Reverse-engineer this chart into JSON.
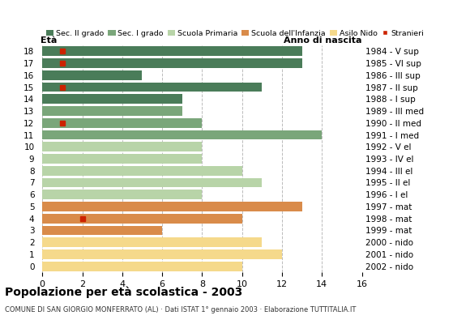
{
  "ages": [
    18,
    17,
    16,
    15,
    14,
    13,
    12,
    11,
    10,
    9,
    8,
    7,
    6,
    5,
    4,
    3,
    2,
    1,
    0
  ],
  "years": [
    "1984 - V sup",
    "1985 - VI sup",
    "1986 - III sup",
    "1987 - II sup",
    "1988 - I sup",
    "1989 - III med",
    "1990 - II med",
    "1991 - I med",
    "1992 - V el",
    "1993 - IV el",
    "1994 - III el",
    "1995 - II el",
    "1996 - I el",
    "1997 - mat",
    "1998 - mat",
    "1999 - mat",
    "2000 - nido",
    "2001 - nido",
    "2002 - nido"
  ],
  "values": [
    13,
    13,
    5,
    11,
    7,
    7,
    8,
    14,
    8,
    8,
    10,
    11,
    8,
    13,
    10,
    6,
    11,
    12,
    10
  ],
  "stranieri": [
    1,
    1,
    0,
    1,
    0,
    0,
    1,
    0,
    0,
    0,
    0,
    0,
    0,
    0,
    2,
    0,
    0,
    0,
    0
  ],
  "colors": {
    "sec2": "#4a7c59",
    "sec1": "#7aa67a",
    "primaria": "#b8d4a8",
    "infanzia": "#d98b4a",
    "nido": "#f5d98b",
    "stranieri": "#cc2200"
  },
  "bar_colors": [
    "#4a7c59",
    "#4a7c59",
    "#4a7c59",
    "#4a7c59",
    "#4a7c59",
    "#7aa67a",
    "#7aa67a",
    "#7aa67a",
    "#b8d4a8",
    "#b8d4a8",
    "#b8d4a8",
    "#b8d4a8",
    "#b8d4a8",
    "#d98b4a",
    "#d98b4a",
    "#d98b4a",
    "#f5d98b",
    "#f5d98b",
    "#f5d98b"
  ],
  "legend_labels": [
    "Sec. II grado",
    "Sec. I grado",
    "Scuola Primaria",
    "Scuola dell'Infanzia",
    "Asilo Nido",
    "Stranieri"
  ],
  "legend_colors": [
    "#4a7c59",
    "#7aa67a",
    "#b8d4a8",
    "#d98b4a",
    "#f5d98b",
    "#cc2200"
  ],
  "title": "Popolazione per età scolastica - 2003",
  "subtitle": "COMUNE DI SAN GIORGIO MONFERRATO (AL) · Dati ISTAT 1° gennaio 2003 · Elaborazione TUTTITALIA.IT",
  "eta_label": "Età",
  "anno_label": "Anno di nascita",
  "xlim": [
    0,
    16
  ],
  "xticks": [
    0,
    2,
    4,
    6,
    8,
    10,
    12,
    14,
    16
  ],
  "bg_color": "#ffffff",
  "bar_height": 0.8
}
